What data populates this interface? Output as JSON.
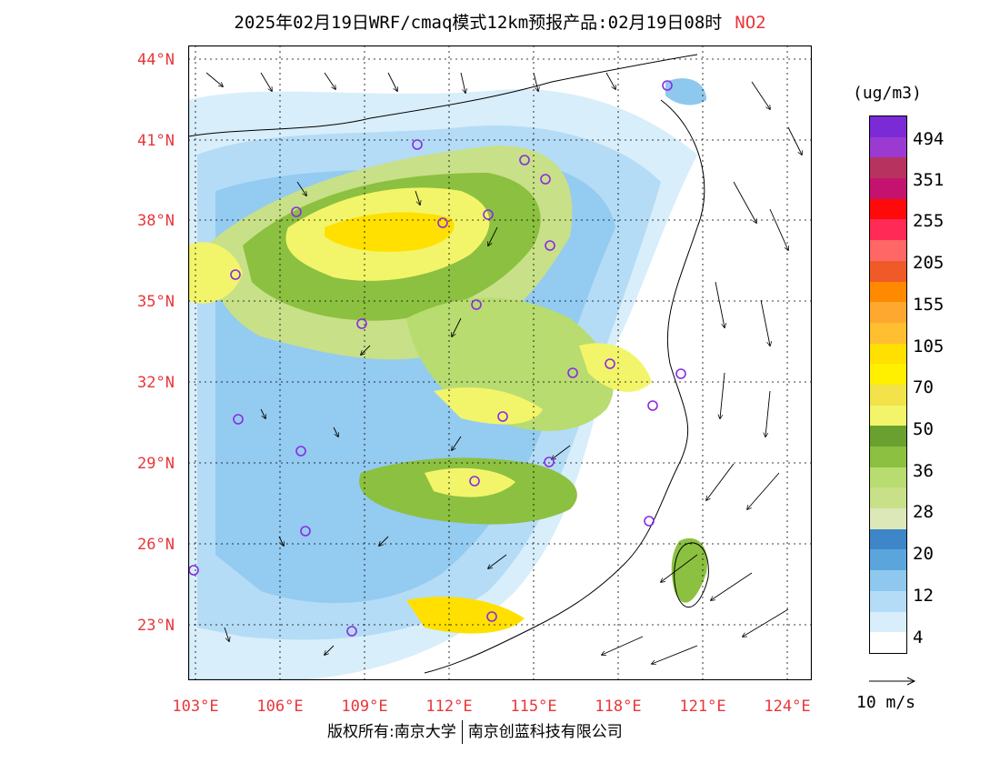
{
  "title": {
    "text": "2025年02月19日WRF/cmaq模式12km预报产品:02月19日08时",
    "pollutant": "NO2"
  },
  "lat_labels": [
    "44°N",
    "41°N",
    "38°N",
    "35°N",
    "32°N",
    "29°N",
    "26°N",
    "23°N"
  ],
  "lon_labels": [
    "103°E",
    "106°E",
    "109°E",
    "112°E",
    "115°E",
    "118°E",
    "121°E",
    "124°E"
  ],
  "colorbar": {
    "unit": "(ug/m3)",
    "labels": [
      "494",
      "351",
      "255",
      "205",
      "155",
      "105",
      "70",
      "50",
      "36",
      "28",
      "20",
      "12",
      "4"
    ],
    "colors": [
      "#7b2bd6",
      "#9b3ad1",
      "#b8325f",
      "#c4136e",
      "#ff0a0a",
      "#ff2a55",
      "#ff6666",
      "#f05a28",
      "#ff8a00",
      "#ffa830",
      "#ffbf30",
      "#ffe000",
      "#fff000",
      "#f3e24a",
      "#f2f56a",
      "#6aa030",
      "#8cc040",
      "#b8dc70",
      "#c8e088",
      "#dce8b8",
      "#3f86c8",
      "#5aa6dc",
      "#8ec8ee",
      "#b4dcf6",
      "#d8eefa",
      "#ffffff"
    ],
    "accent_marker": "#8a2be2",
    "label_color": "#e8363a"
  },
  "wind_reference": {
    "label": "10 m/s"
  },
  "footer": {
    "copyright": "版权所有:南京大学",
    "company": "南京创蓝科技有限公司"
  }
}
